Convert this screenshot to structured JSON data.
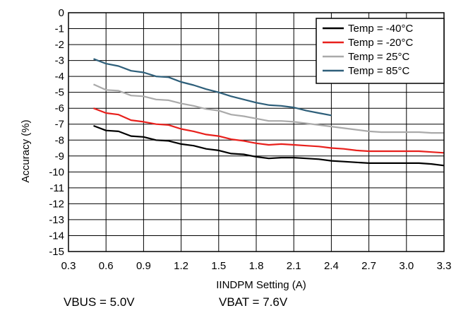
{
  "chart_data": {
    "type": "line",
    "xlabel": "IINDPM Setting (A)",
    "ylabel": "Accuracy (%)",
    "xlim": [
      0.3,
      3.3
    ],
    "ylim": [
      -15,
      0
    ],
    "xticks": [
      0.3,
      0.6,
      0.9,
      1.2,
      1.5,
      1.8,
      2.1,
      2.4,
      2.7,
      3.0,
      3.3
    ],
    "xtick_labels": [
      "0.3",
      "0.6",
      "0.9",
      "1.2",
      "1.5",
      "1.8",
      "2.1",
      "2.4",
      "2.7",
      "3.0",
      "3.3"
    ],
    "yticks": [
      0,
      -1,
      -2,
      -3,
      -4,
      -5,
      -6,
      -7,
      -8,
      -9,
      -10,
      -11,
      -12,
      -13,
      -14,
      -15
    ],
    "ytick_labels": [
      "0",
      "-1",
      "-2",
      "-3",
      "-4",
      "-5",
      "-6",
      "-7",
      "-8",
      "-9",
      "-10",
      "-11",
      "-12",
      "-13",
      "-14",
      "-15"
    ],
    "grid": true,
    "legend_position": "top-right",
    "series": [
      {
        "name": "Temp = -40°C",
        "color": "#000000",
        "x": [
          0.5,
          0.6,
          0.7,
          0.8,
          0.9,
          1.0,
          1.1,
          1.2,
          1.3,
          1.4,
          1.5,
          1.6,
          1.7,
          1.8,
          1.9,
          2.0,
          2.1,
          2.2,
          2.3,
          2.4,
          2.5,
          2.6,
          2.7,
          2.8,
          2.9,
          3.0,
          3.1,
          3.2,
          3.3
        ],
        "y": [
          -7.1,
          -7.4,
          -7.45,
          -7.75,
          -7.8,
          -8.0,
          -8.05,
          -8.25,
          -8.35,
          -8.55,
          -8.65,
          -8.85,
          -8.9,
          -9.05,
          -9.15,
          -9.1,
          -9.1,
          -9.15,
          -9.2,
          -9.3,
          -9.35,
          -9.4,
          -9.45,
          -9.45,
          -9.45,
          -9.45,
          -9.45,
          -9.5,
          -9.6
        ]
      },
      {
        "name": "Temp = -20°C",
        "color": "#e8201c",
        "x": [
          0.5,
          0.6,
          0.7,
          0.8,
          0.9,
          1.0,
          1.1,
          1.2,
          1.3,
          1.4,
          1.5,
          1.6,
          1.7,
          1.8,
          1.9,
          2.0,
          2.1,
          2.2,
          2.3,
          2.4,
          2.5,
          2.6,
          2.7,
          2.8,
          2.9,
          3.0,
          3.1,
          3.2,
          3.3
        ],
        "y": [
          -6.0,
          -6.3,
          -6.4,
          -6.75,
          -6.85,
          -7.0,
          -7.05,
          -7.3,
          -7.45,
          -7.65,
          -7.75,
          -7.95,
          -8.05,
          -8.2,
          -8.3,
          -8.25,
          -8.3,
          -8.35,
          -8.4,
          -8.5,
          -8.55,
          -8.65,
          -8.7,
          -8.7,
          -8.7,
          -8.7,
          -8.7,
          -8.75,
          -8.8
        ]
      },
      {
        "name": "Temp = 25°C",
        "color": "#aaaaaa",
        "x": [
          0.5,
          0.6,
          0.7,
          0.8,
          0.9,
          1.0,
          1.1,
          1.2,
          1.3,
          1.4,
          1.5,
          1.6,
          1.7,
          1.8,
          1.9,
          2.0,
          2.1,
          2.2,
          2.3,
          2.4,
          2.5,
          2.6,
          2.7,
          2.8,
          2.9,
          3.0,
          3.1,
          3.2,
          3.3
        ],
        "y": [
          -4.5,
          -4.85,
          -4.9,
          -5.2,
          -5.25,
          -5.45,
          -5.5,
          -5.7,
          -5.85,
          -6.05,
          -6.15,
          -6.4,
          -6.5,
          -6.65,
          -6.8,
          -6.8,
          -6.85,
          -6.95,
          -7.05,
          -7.15,
          -7.25,
          -7.35,
          -7.45,
          -7.5,
          -7.5,
          -7.5,
          -7.5,
          -7.55,
          -7.55
        ]
      },
      {
        "name": "Temp = 85°C",
        "color": "#2e5f7a",
        "x": [
          0.5,
          0.6,
          0.7,
          0.8,
          0.9,
          1.0,
          1.1,
          1.2,
          1.3,
          1.4,
          1.5,
          1.6,
          1.7,
          1.8,
          1.9,
          2.0,
          2.1,
          2.2,
          2.3,
          2.4
        ],
        "y": [
          -2.9,
          -3.2,
          -3.35,
          -3.65,
          -3.75,
          -4.0,
          -4.05,
          -4.35,
          -4.55,
          -4.8,
          -5.0,
          -5.25,
          -5.45,
          -5.65,
          -5.8,
          -5.85,
          -5.95,
          -6.15,
          -6.3,
          -6.45
        ]
      }
    ]
  },
  "conditions": {
    "vbus": "VBUS = 5.0V",
    "vbat": "VBAT = 7.6V"
  }
}
